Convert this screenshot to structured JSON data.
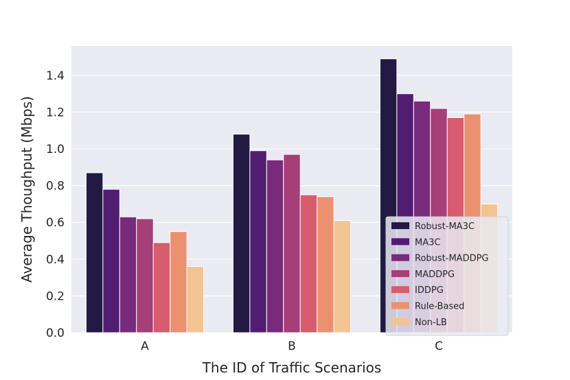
{
  "chart_data": {
    "type": "bar",
    "title": "",
    "xlabel": "The ID of Traffic Scenarios",
    "ylabel": "Average Thoughput (Mbps)",
    "ylim": [
      0,
      1.56
    ],
    "yticks": [
      "0.0",
      "0.2",
      "0.4",
      "0.6",
      "0.8",
      "1.0",
      "1.2",
      "1.4"
    ],
    "grid": true,
    "legend_position": "bottom-right",
    "categories": [
      "A",
      "B",
      "C"
    ],
    "series": [
      {
        "name": "Robust-MA3C",
        "color": "#221a43",
        "values": [
          0.87,
          1.08,
          1.49
        ]
      },
      {
        "name": "MA3C",
        "color": "#511d71",
        "values": [
          0.78,
          0.99,
          1.3
        ]
      },
      {
        "name": "Robust-MADDPG",
        "color": "#782b7a",
        "values": [
          0.63,
          0.94,
          1.26
        ]
      },
      {
        "name": "MADDPG",
        "color": "#a63e78",
        "values": [
          0.62,
          0.97,
          1.22
        ]
      },
      {
        "name": "IDDPG",
        "color": "#d75c6d",
        "values": [
          0.49,
          0.75,
          1.17
        ]
      },
      {
        "name": "Rule-Based",
        "color": "#eb9170",
        "values": [
          0.55,
          0.74,
          1.19
        ]
      },
      {
        "name": "Non-LB",
        "color": "#f1c491",
        "values": [
          0.36,
          0.61,
          0.7
        ]
      }
    ]
  }
}
